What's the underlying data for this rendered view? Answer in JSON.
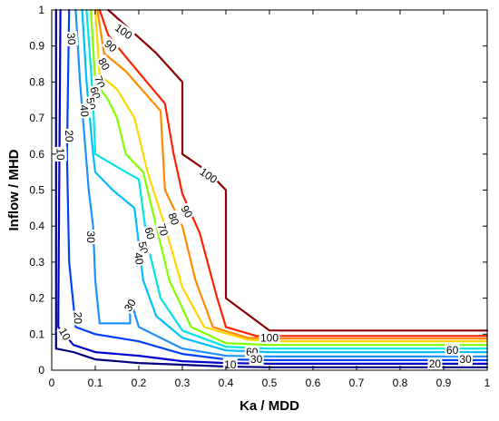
{
  "chart_data": {
    "type": "contour",
    "xlabel": "Ka / MDD",
    "ylabel": "Inflow / MHD",
    "xlim": [
      0,
      1
    ],
    "ylim": [
      0,
      1
    ],
    "xticks": [
      "0",
      "0.1",
      "0.2",
      "0.3",
      "0.4",
      "0.5",
      "0.6",
      "0.7",
      "0.8",
      "0.9",
      "1"
    ],
    "yticks": [
      "0",
      "0.1",
      "0.2",
      "0.3",
      "0.4",
      "0.5",
      "0.6",
      "0.7",
      "0.8",
      "0.9",
      "1"
    ],
    "grid": false,
    "levels": [
      {
        "level": 0,
        "color": "#000080",
        "points": [
          [
            0.01,
            1
          ],
          [
            0.01,
            0.06
          ],
          [
            0.05,
            0.05
          ],
          [
            0.1,
            0.03
          ],
          [
            0.2,
            0.02
          ],
          [
            0.3,
            0.015
          ],
          [
            0.4,
            0.01
          ],
          [
            0.5,
            0.008
          ],
          [
            1,
            0.008
          ]
        ]
      },
      {
        "level": 10,
        "color": "#0000CD",
        "points": [
          [
            0.02,
            1
          ],
          [
            0.015,
            0.12
          ],
          [
            0.05,
            0.07
          ],
          [
            0.1,
            0.05
          ],
          [
            0.2,
            0.04
          ],
          [
            0.3,
            0.025
          ],
          [
            0.4,
            0.02
          ],
          [
            0.5,
            0.018
          ],
          [
            1,
            0.018
          ]
        ]
      },
      {
        "level": 20,
        "color": "#0040FF",
        "points": [
          [
            0.04,
            1
          ],
          [
            0.035,
            0.6
          ],
          [
            0.04,
            0.3
          ],
          [
            0.055,
            0.12
          ],
          [
            0.1,
            0.1
          ],
          [
            0.2,
            0.08
          ],
          [
            0.3,
            0.045
          ],
          [
            0.4,
            0.03
          ],
          [
            0.5,
            0.028
          ],
          [
            1,
            0.028
          ]
        ]
      },
      {
        "level": 30,
        "color": "#1E90FF",
        "points": [
          [
            0.055,
            1
          ],
          [
            0.065,
            0.8
          ],
          [
            0.085,
            0.5
          ],
          [
            0.095,
            0.4
          ],
          [
            0.1,
            0.25
          ],
          [
            0.11,
            0.13
          ],
          [
            0.18,
            0.13
          ],
          [
            0.18,
            0.2
          ],
          [
            0.2,
            0.12
          ],
          [
            0.3,
            0.06
          ],
          [
            0.4,
            0.04
          ],
          [
            0.5,
            0.038
          ],
          [
            1,
            0.038
          ]
        ]
      },
      {
        "level": 40,
        "color": "#00BFFF",
        "points": [
          [
            0.07,
            1
          ],
          [
            0.08,
            0.8
          ],
          [
            0.095,
            0.6
          ],
          [
            0.1,
            0.55
          ],
          [
            0.14,
            0.5
          ],
          [
            0.19,
            0.45
          ],
          [
            0.2,
            0.35
          ],
          [
            0.21,
            0.25
          ],
          [
            0.24,
            0.15
          ],
          [
            0.3,
            0.09
          ],
          [
            0.4,
            0.055
          ],
          [
            0.5,
            0.05
          ],
          [
            1,
            0.05
          ]
        ]
      },
      {
        "level": 50,
        "color": "#00E5E5",
        "points": [
          [
            0.08,
            1
          ],
          [
            0.095,
            0.75
          ],
          [
            0.1,
            0.6
          ],
          [
            0.17,
            0.55
          ],
          [
            0.2,
            0.53
          ],
          [
            0.22,
            0.35
          ],
          [
            0.25,
            0.2
          ],
          [
            0.3,
            0.11
          ],
          [
            0.4,
            0.065
          ],
          [
            0.5,
            0.06
          ],
          [
            1,
            0.06
          ]
        ]
      },
      {
        "level": 60,
        "color": "#7FFF00",
        "points": [
          [
            0.09,
            1
          ],
          [
            0.1,
            0.8
          ],
          [
            0.13,
            0.75
          ],
          [
            0.15,
            0.7
          ],
          [
            0.17,
            0.6
          ],
          [
            0.21,
            0.55
          ],
          [
            0.24,
            0.4
          ],
          [
            0.27,
            0.25
          ],
          [
            0.32,
            0.12
          ],
          [
            0.4,
            0.075
          ],
          [
            0.5,
            0.07
          ],
          [
            1,
            0.07
          ]
        ]
      },
      {
        "level": 70,
        "color": "#FFD700",
        "points": [
          [
            0.1,
            1
          ],
          [
            0.11,
            0.82
          ],
          [
            0.15,
            0.78
          ],
          [
            0.19,
            0.7
          ],
          [
            0.22,
            0.55
          ],
          [
            0.26,
            0.4
          ],
          [
            0.3,
            0.23
          ],
          [
            0.35,
            0.12
          ],
          [
            0.45,
            0.085
          ],
          [
            0.5,
            0.08
          ],
          [
            1,
            0.08
          ]
        ]
      },
      {
        "level": 80,
        "color": "#FF8C00",
        "points": [
          [
            0.105,
            1
          ],
          [
            0.12,
            0.88
          ],
          [
            0.17,
            0.83
          ],
          [
            0.25,
            0.72
          ],
          [
            0.26,
            0.5
          ],
          [
            0.3,
            0.4
          ],
          [
            0.33,
            0.25
          ],
          [
            0.37,
            0.12
          ],
          [
            0.45,
            0.09
          ],
          [
            0.5,
            0.088
          ],
          [
            1,
            0.088
          ]
        ]
      },
      {
        "level": 90,
        "color": "#FF2000",
        "points": [
          [
            0.11,
            1
          ],
          [
            0.13,
            0.93
          ],
          [
            0.17,
            0.87
          ],
          [
            0.26,
            0.74
          ],
          [
            0.28,
            0.6
          ],
          [
            0.3,
            0.49
          ],
          [
            0.34,
            0.38
          ],
          [
            0.38,
            0.2
          ],
          [
            0.4,
            0.12
          ],
          [
            0.47,
            0.095
          ],
          [
            0.5,
            0.095
          ],
          [
            1,
            0.095
          ]
        ]
      },
      {
        "level": 100,
        "color": "#8B0000",
        "points": [
          [
            0.13,
            1
          ],
          [
            0.24,
            0.88
          ],
          [
            0.3,
            0.8
          ],
          [
            0.3,
            0.6
          ],
          [
            0.36,
            0.55
          ],
          [
            0.4,
            0.5
          ],
          [
            0.4,
            0.2
          ],
          [
            0.5,
            0.11
          ],
          [
            1,
            0.11
          ]
        ]
      }
    ],
    "labels": [
      {
        "text": "100",
        "x": 0.165,
        "y": 0.94,
        "rotate": 35
      },
      {
        "text": "90",
        "x": 0.135,
        "y": 0.9,
        "rotate": 40
      },
      {
        "text": "80",
        "x": 0.12,
        "y": 0.85,
        "rotate": 60
      },
      {
        "text": "70",
        "x": 0.11,
        "y": 0.8,
        "rotate": 70
      },
      {
        "text": "60",
        "x": 0.1,
        "y": 0.77,
        "rotate": 75
      },
      {
        "text": "50",
        "x": 0.09,
        "y": 0.74,
        "rotate": 80
      },
      {
        "text": "40",
        "x": 0.075,
        "y": 0.72,
        "rotate": 85
      },
      {
        "text": "30",
        "x": 0.045,
        "y": 0.92,
        "rotate": 85
      },
      {
        "text": "20",
        "x": 0.04,
        "y": 0.65,
        "rotate": 88
      },
      {
        "text": "10",
        "x": 0.02,
        "y": 0.6,
        "rotate": 88
      },
      {
        "text": "100",
        "x": 0.36,
        "y": 0.54,
        "rotate": 35
      },
      {
        "text": "90",
        "x": 0.31,
        "y": 0.44,
        "rotate": 60
      },
      {
        "text": "80",
        "x": 0.28,
        "y": 0.42,
        "rotate": 70
      },
      {
        "text": "70",
        "x": 0.255,
        "y": 0.39,
        "rotate": 72
      },
      {
        "text": "60",
        "x": 0.225,
        "y": 0.38,
        "rotate": 75
      },
      {
        "text": "50",
        "x": 0.21,
        "y": 0.34,
        "rotate": 78
      },
      {
        "text": "40",
        "x": 0.2,
        "y": 0.31,
        "rotate": 82
      },
      {
        "text": "30",
        "x": 0.09,
        "y": 0.37,
        "rotate": 90
      },
      {
        "text": "30",
        "x": 0.18,
        "y": 0.18,
        "rotate": -60
      },
      {
        "text": "20",
        "x": 0.06,
        "y": 0.145,
        "rotate": 88
      },
      {
        "text": "10",
        "x": 0.03,
        "y": 0.1,
        "rotate": 60
      },
      {
        "text": "100",
        "x": 0.5,
        "y": 0.09,
        "rotate": 0
      },
      {
        "text": "60",
        "x": 0.46,
        "y": 0.05,
        "rotate": 0
      },
      {
        "text": "30",
        "x": 0.47,
        "y": 0.03,
        "rotate": 0
      },
      {
        "text": "10",
        "x": 0.41,
        "y": 0.015,
        "rotate": 0
      },
      {
        "text": "30",
        "x": 0.95,
        "y": 0.03,
        "rotate": 0
      },
      {
        "text": "20",
        "x": 0.88,
        "y": 0.018,
        "rotate": 0
      },
      {
        "text": "60",
        "x": 0.92,
        "y": 0.055,
        "rotate": 0
      }
    ]
  }
}
